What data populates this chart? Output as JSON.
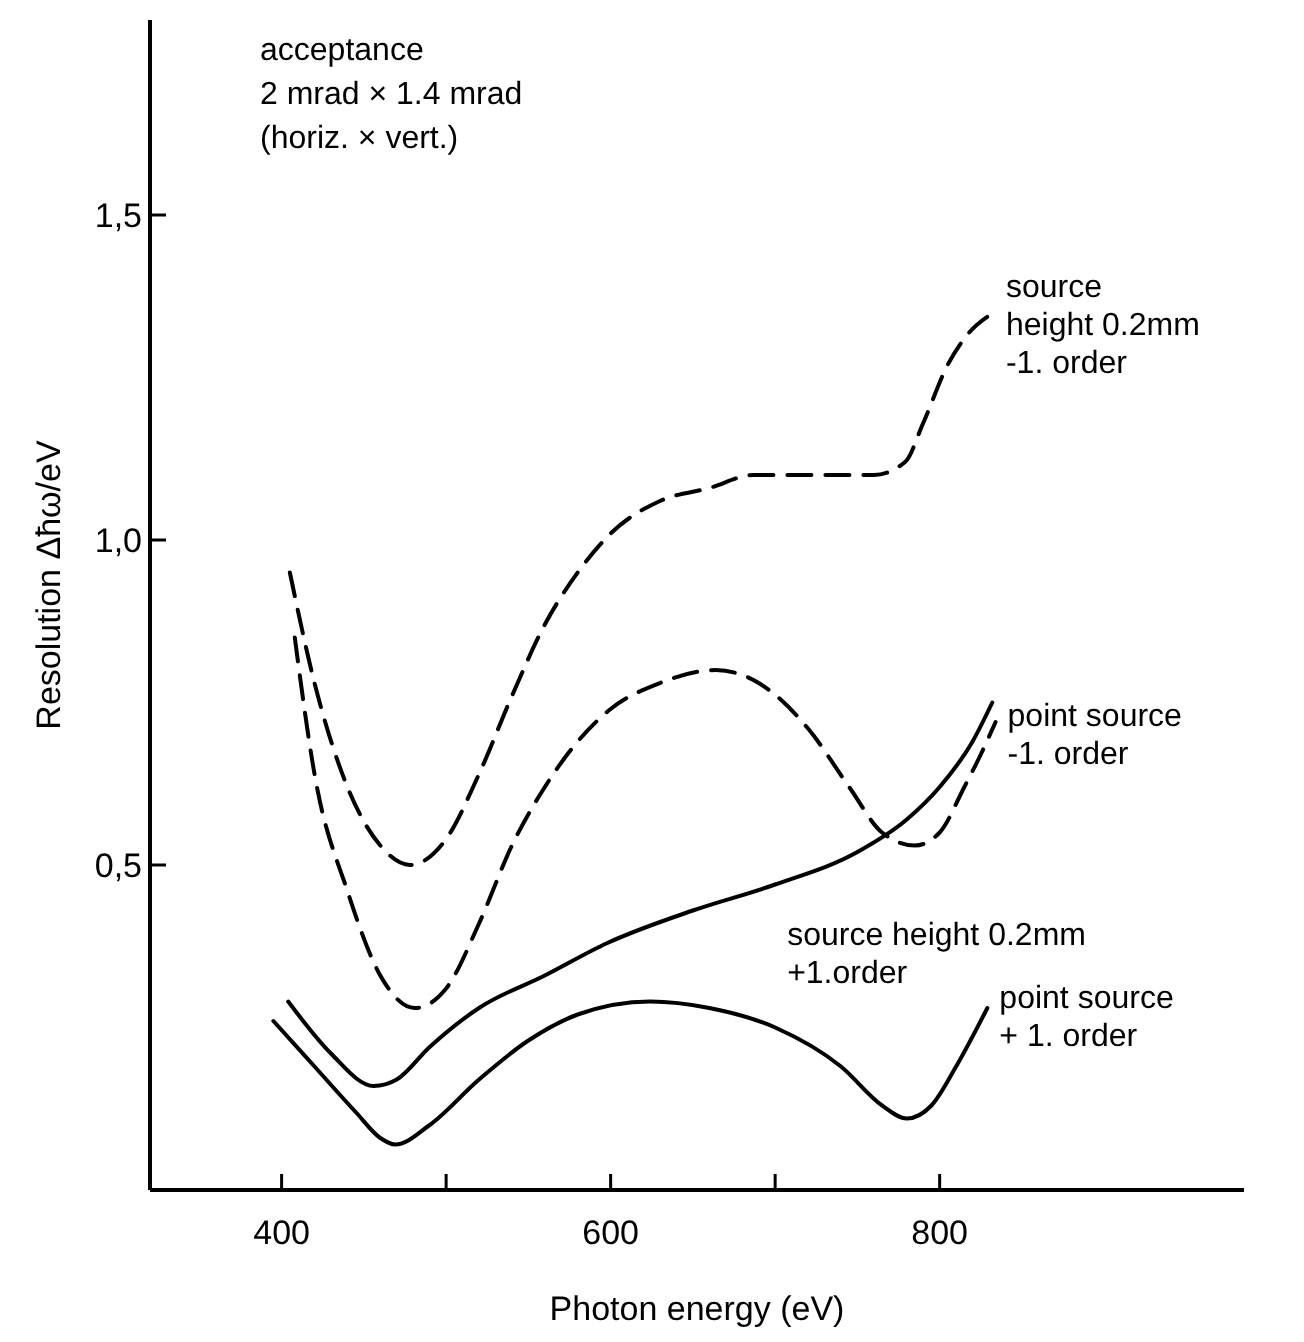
{
  "chart_data": {
    "type": "line",
    "xlabel": "Photon energy (eV)",
    "ylabel": "Resolution Δħω/eV",
    "annotations": [
      "acceptance",
      "2 mrad × 1.4 mrad",
      "(horiz. × vert.)"
    ],
    "xlim": [
      320,
      985
    ],
    "ylim": [
      0,
      1.8
    ],
    "xticks": [
      400,
      {
        "value": 500,
        "label": null
      },
      600,
      {
        "value": 700,
        "label": null
      },
      800
    ],
    "yticks": [
      {
        "value": 0.5,
        "label": "0,5"
      },
      {
        "value": 1.0,
        "label": "1,0"
      },
      {
        "value": 1.5,
        "label": "1,5"
      }
    ],
    "marker": "none",
    "series": [
      {
        "name": "source height 0.2mm -1. order",
        "color": "#000000",
        "line_style": "dashed",
        "x": [
          405,
          420,
          440,
          460,
          478,
          500,
          520,
          540,
          560,
          580,
          600,
          630,
          660,
          687,
          720,
          760,
          779,
          790,
          805,
          815,
          833
        ],
        "values": [
          0.95,
          0.78,
          0.62,
          0.53,
          0.5,
          0.54,
          0.64,
          0.76,
          0.87,
          0.95,
          1.01,
          1.06,
          1.08,
          1.1,
          1.1,
          1.1,
          1.12,
          1.18,
          1.27,
          1.31,
          1.35
        ]
      },
      {
        "name": "point source -1. order",
        "color": "#000000",
        "line_style": "dashed",
        "x": [
          408,
          420,
          440,
          460,
          481,
          500,
          520,
          540,
          560,
          580,
          600,
          630,
          664,
          690,
          720,
          745,
          765,
          785,
          800,
          815,
          825,
          834
        ],
        "values": [
          0.85,
          0.64,
          0.46,
          0.33,
          0.28,
          0.31,
          0.41,
          0.53,
          0.62,
          0.69,
          0.74,
          0.78,
          0.8,
          0.78,
          0.71,
          0.62,
          0.55,
          0.53,
          0.55,
          0.62,
          0.67,
          0.72
        ]
      },
      {
        "name": "source height 0.2mm +1.order",
        "color": "#000000",
        "line_style": "solid",
        "x": [
          404,
          430,
          456,
          470,
          490,
          520,
          560,
          598,
          650,
          700,
          750,
          780,
          800,
          820,
          832
        ],
        "values": [
          0.29,
          0.21,
          0.16,
          0.17,
          0.22,
          0.28,
          0.33,
          0.38,
          0.43,
          0.47,
          0.52,
          0.57,
          0.62,
          0.69,
          0.75
        ]
      },
      {
        "name": "point source + 1. order",
        "color": "#000000",
        "line_style": "solid",
        "x": [
          395,
          420,
          445,
          460,
          469,
          490,
          520,
          550,
          580,
          624,
          660,
          700,
          740,
          765,
          780,
          795,
          810,
          829
        ],
        "values": [
          0.26,
          0.19,
          0.12,
          0.08,
          0.07,
          0.1,
          0.17,
          0.23,
          0.27,
          0.29,
          0.28,
          0.25,
          0.19,
          0.13,
          0.11,
          0.13,
          0.19,
          0.28
        ]
      }
    ]
  }
}
